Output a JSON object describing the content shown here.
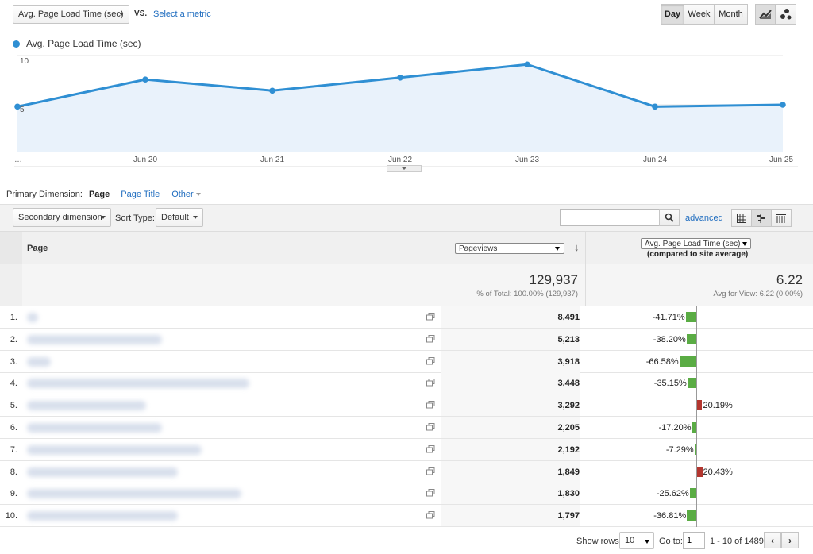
{
  "topbar": {
    "metric_select": "Avg. Page Load Time (sec)",
    "vs_label": "VS.",
    "select_metric_link": "Select a metric",
    "granularity": [
      "Day",
      "Week",
      "Month"
    ],
    "active_granularity": "Day"
  },
  "chart_data": {
    "type": "line",
    "legend": "Avg. Page Load Time (sec)",
    "series_color": "#2f8fd3",
    "x": [
      "…",
      "Jun 20",
      "Jun 21",
      "Jun 22",
      "Jun 23",
      "Jun 24",
      "Jun 25"
    ],
    "points": [
      {
        "x": "Jun 19",
        "y": 4.8
      },
      {
        "x": "Jun 20",
        "y": 7.7
      },
      {
        "x": "Jun 20.5",
        "y": 6.5
      },
      {
        "x": "Jun 21.5",
        "y": 7.9
      },
      {
        "x": "Jun 23",
        "y": 9.3
      },
      {
        "x": "Jun 24",
        "y": 4.8
      },
      {
        "x": "Jun 25",
        "y": 5.0
      }
    ],
    "y_ticks": [
      "10",
      "5"
    ],
    "ylim": [
      0,
      10.5
    ]
  },
  "dimension": {
    "label": "Primary Dimension:",
    "active": "Page",
    "options": [
      "Page Title",
      "Other"
    ]
  },
  "filters": {
    "secondary": "Secondary dimension",
    "sort_label": "Sort Type:",
    "sort_value": "Default",
    "search_placeholder": "",
    "advanced": "advanced"
  },
  "table": {
    "header_page": "Page",
    "pageviews_select": "Pageviews",
    "metric_select": "Avg. Page Load Time (sec)",
    "metric_sub": "(compared to site average)",
    "totals": {
      "pageviews": "129,937",
      "pageviews_sub": "% of Total: 100.00% (129,937)",
      "avg": "6.22",
      "avg_sub": "Avg for View: 6.22 (0.00%)"
    },
    "rows": [
      {
        "n": "1.",
        "pv": "8,491",
        "pct": "-41.71%",
        "v": -41.71
      },
      {
        "n": "2.",
        "pv": "5,213",
        "pct": "-38.20%",
        "v": -38.2
      },
      {
        "n": "3.",
        "pv": "3,918",
        "pct": "-66.58%",
        "v": -66.58
      },
      {
        "n": "4.",
        "pv": "3,448",
        "pct": "-35.15%",
        "v": -35.15
      },
      {
        "n": "5.",
        "pv": "3,292",
        "pct": "20.19%",
        "v": 20.19
      },
      {
        "n": "6.",
        "pv": "2,205",
        "pct": "-17.20%",
        "v": -17.2
      },
      {
        "n": "7.",
        "pv": "2,192",
        "pct": "-7.29%",
        "v": -7.29
      },
      {
        "n": "8.",
        "pv": "1,849",
        "pct": "20.43%",
        "v": 20.43
      },
      {
        "n": "9.",
        "pv": "1,830",
        "pct": "-25.62%",
        "v": -25.62
      },
      {
        "n": "10.",
        "pv": "1,797",
        "pct": "-36.81%",
        "v": -36.81
      }
    ]
  },
  "footer": {
    "show_rows_label": "Show rows:",
    "show_rows_value": "10",
    "goto_label": "Go to:",
    "goto_value": "1",
    "range": "1 - 10 of 1489"
  },
  "colors": {
    "positive_bar": "#5aac44",
    "negative_bar": "#b3362f",
    "line": "#2f8fd3",
    "link": "#1e6cbf"
  }
}
